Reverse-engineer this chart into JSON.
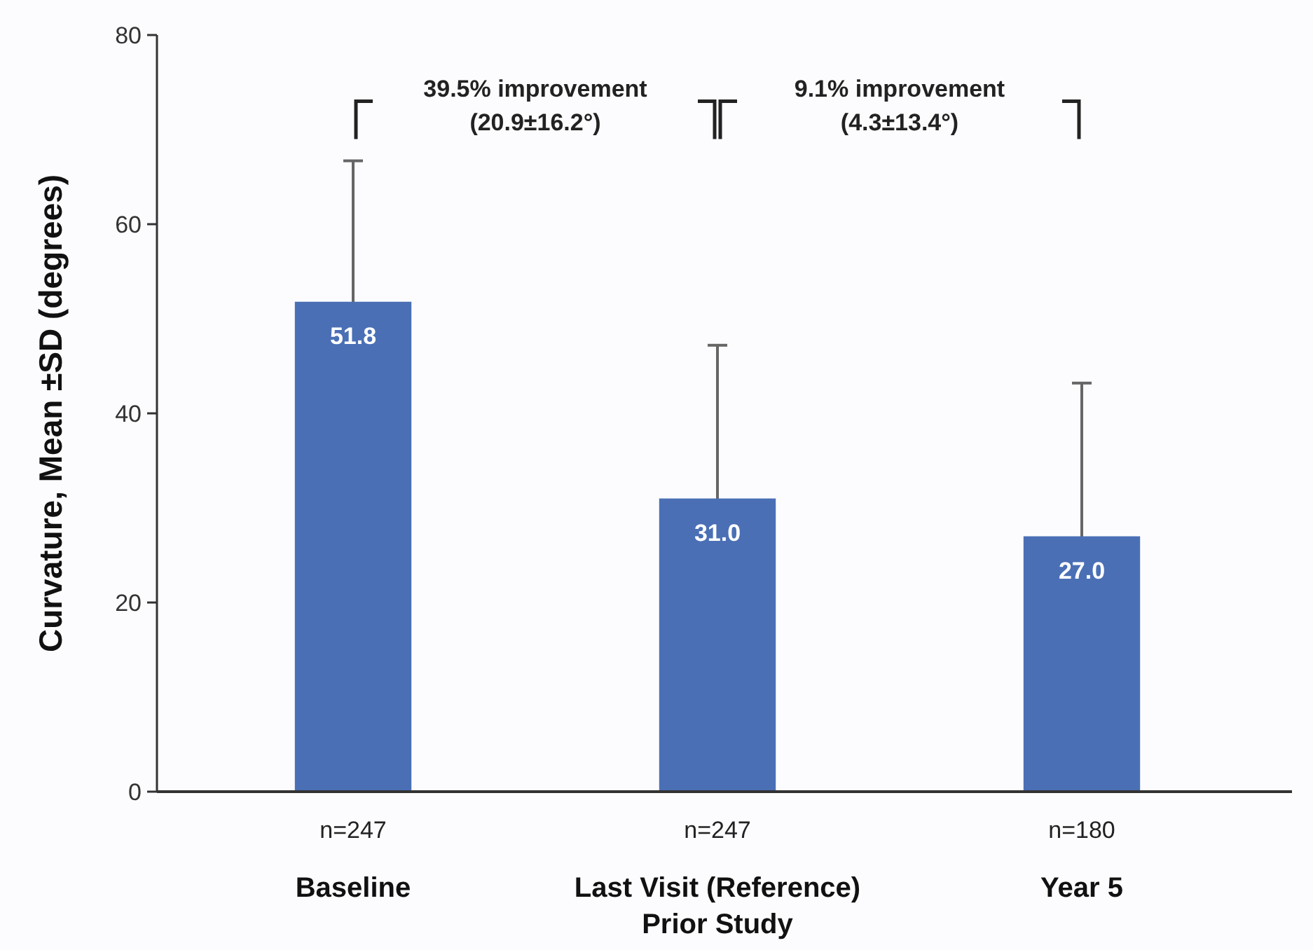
{
  "chart_data": {
    "type": "bar",
    "ylabel": "Curvature, Mean ±SD (degrees)",
    "categories": [
      "Baseline",
      "Last Visit (Reference)\nPrior Study",
      "Year 5"
    ],
    "values": [
      51.8,
      31.0,
      27.0
    ],
    "errors": [
      14.9,
      16.2,
      16.2
    ],
    "color": "#4a6fb5",
    "value_labels": [
      "51.8",
      "31.0",
      "27.0"
    ],
    "ylim": [
      0,
      80
    ],
    "yticks": [
      0,
      20,
      40,
      60,
      80
    ],
    "annotations": [
      "n=247",
      "n=247",
      "n=180",
      "39.5% improvement\n(20.9±16.2°)",
      "9.1% improvement\n(4.3±13.4°)"
    ]
  }
}
